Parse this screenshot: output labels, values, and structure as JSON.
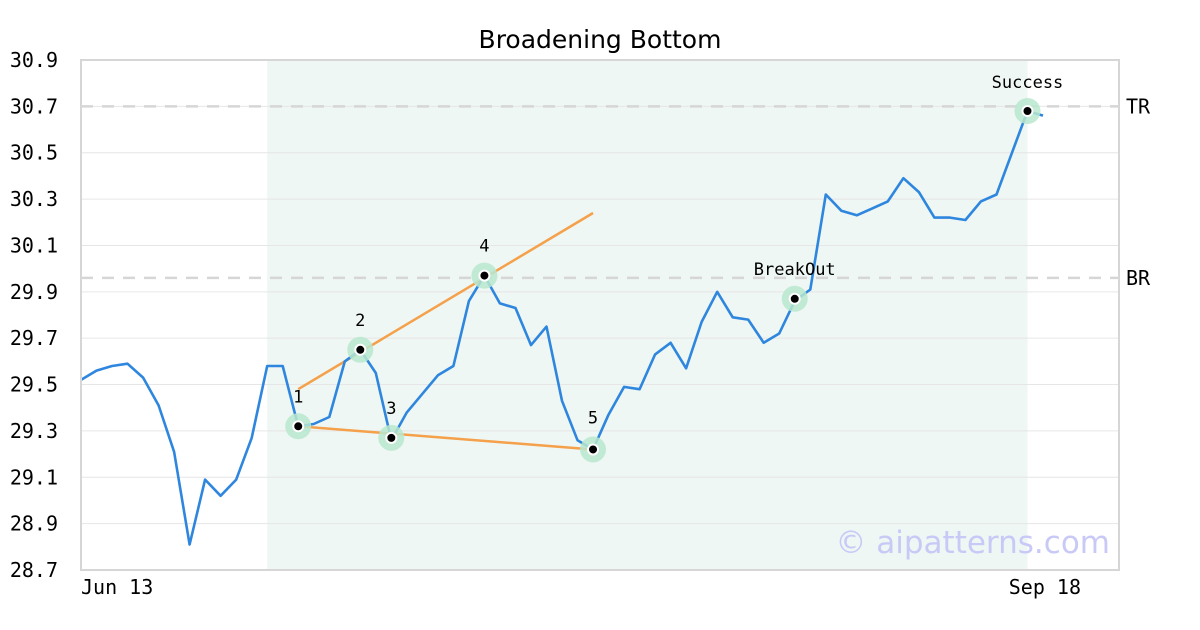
{
  "chart_data": {
    "type": "line",
    "title": "Broadening Bottom",
    "xlabel": "",
    "ylabel": "",
    "ylim": [
      28.7,
      30.9
    ],
    "y_ticks": [
      "28.7",
      "28.9",
      "29.1",
      "29.3",
      "29.5",
      "29.7",
      "29.9",
      "30.1",
      "30.3",
      "30.5",
      "30.7",
      "30.9"
    ],
    "x_tick_labels": [
      {
        "index": 0,
        "label": "Jun 13"
      },
      {
        "index": 62,
        "label": "Sep 18"
      }
    ],
    "grid": true,
    "series": [
      {
        "color": "#2e86de",
        "values": [
          29.52,
          29.56,
          29.58,
          29.59,
          29.53,
          29.41,
          29.21,
          28.81,
          29.09,
          29.02,
          29.09,
          29.27,
          29.58,
          29.58,
          29.32,
          29.33,
          29.36,
          29.6,
          29.65,
          29.55,
          29.26,
          29.38,
          29.46,
          29.54,
          29.58,
          29.86,
          29.97,
          29.85,
          29.83,
          29.67,
          29.75,
          29.43,
          29.26,
          29.22,
          29.37,
          29.49,
          29.48,
          29.63,
          29.68,
          29.57,
          29.77,
          29.9,
          29.79,
          29.78,
          29.68,
          29.72,
          29.86,
          29.91,
          30.32,
          30.25,
          30.23,
          30.26,
          30.29,
          30.39,
          30.33,
          30.22,
          30.22,
          30.21,
          30.29,
          30.32,
          30.5,
          30.68,
          30.66
        ]
      }
    ],
    "shaded_region": {
      "start_index": 12,
      "end_index": 61,
      "color": "#eef7f3"
    },
    "pattern_points": [
      {
        "index": 14,
        "value": 29.32,
        "label": "1"
      },
      {
        "index": 18,
        "value": 29.65,
        "label": "2"
      },
      {
        "index": 20,
        "value": 29.27,
        "label": "3"
      },
      {
        "index": 26,
        "value": 29.97,
        "label": "4"
      },
      {
        "index": 33,
        "value": 29.22,
        "label": "5"
      },
      {
        "index": 46,
        "value": 29.87,
        "label": "BreakOut"
      },
      {
        "index": 61,
        "value": 30.68,
        "label": "Success"
      }
    ],
    "trendlines": [
      {
        "name": "upper",
        "from": {
          "index": 14,
          "value": 29.48
        },
        "to": {
          "index": 33,
          "value": 30.24
        },
        "color": "#f5a04a"
      },
      {
        "name": "lower",
        "from": {
          "index": 14,
          "value": 29.32
        },
        "to": {
          "index": 33,
          "value": 29.22
        },
        "color": "#f5a04a"
      }
    ],
    "reference_lines": [
      {
        "label": "TR",
        "value": 30.7
      },
      {
        "label": "BR",
        "value": 29.96
      }
    ],
    "watermark": "© aipatterns.com",
    "colors": {
      "line": "#2e86de",
      "trend": "#f5a04a",
      "marker_halo": "#b9e8cf",
      "grid": "#e6e6e6",
      "ref_line": "#d6d6d6"
    }
  }
}
